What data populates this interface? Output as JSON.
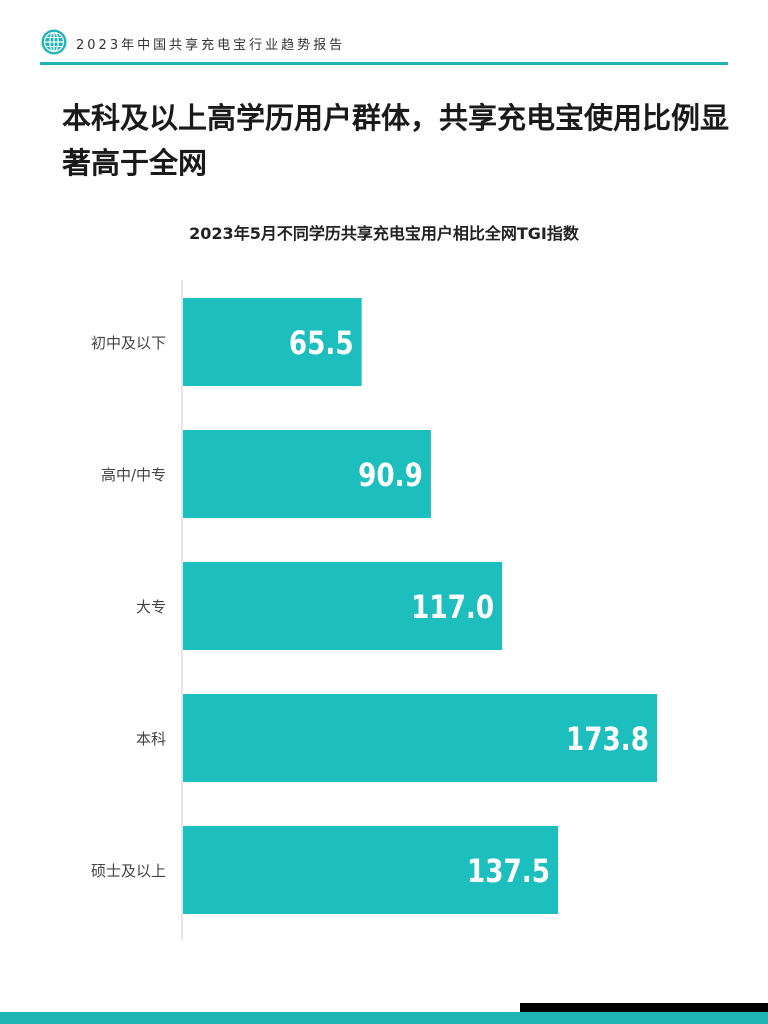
{
  "header": {
    "report_title": "2023年中国共享充电宝行业趋势报告",
    "logo_icon": "globe-icon"
  },
  "page": {
    "title": "本科及以上高学历用户群体，共享充电宝使用比例显著高于全网"
  },
  "colors": {
    "accent": "#1fb5b5",
    "bar": "#1cbebe",
    "axis": "#cccccc"
  },
  "chart_data": {
    "type": "bar",
    "orientation": "horizontal",
    "title": "2023年5月不同学历共享充电宝用户相比全网TGI指数",
    "categories": [
      "初中及以下",
      "高中/中专",
      "大专",
      "本科",
      "硕士及以上"
    ],
    "values": [
      65.5,
      90.9,
      117.0,
      173.8,
      137.5
    ],
    "value_labels": [
      "65.5",
      "90.9",
      "117.0",
      "173.8",
      "137.5"
    ],
    "xlim": [
      0,
      173.8
    ],
    "xlabel": "",
    "ylabel": "",
    "grid": false,
    "legend": "none"
  }
}
